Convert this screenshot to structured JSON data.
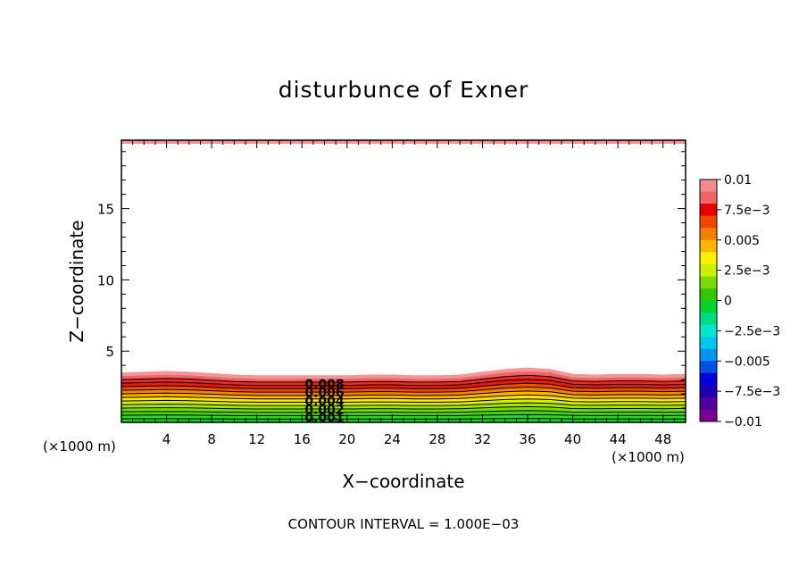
{
  "chart_data": {
    "type": "contour",
    "title": "disturbunce of Exner",
    "xlabel": "X−coordinate",
    "ylabel": "Z−coordinate",
    "x_unit_left": "(×1000 m)",
    "x_unit_right": "(×1000 m)",
    "xlim": [
      0,
      50
    ],
    "ylim": [
      0,
      19.8
    ],
    "x_ticks": [
      4,
      8,
      12,
      16,
      20,
      24,
      28,
      32,
      36,
      40,
      44,
      48
    ],
    "y_ticks": [
      5,
      10,
      15
    ],
    "contour_interval_text": "CONTOUR INTERVAL = 1.000E−03",
    "contour_levels": [
      0.001,
      0.002,
      0.003,
      0.004,
      0.005,
      0.006,
      0.007,
      0.008,
      0.009,
      0.01
    ],
    "contour_labels": [
      {
        "text": "0.008",
        "x": 18,
        "z": 2.7
      },
      {
        "text": "0.006",
        "x": 18,
        "z": 2.1
      },
      {
        "text": "0.004",
        "x": 18,
        "z": 1.5
      },
      {
        "text": "0.002",
        "x": 18,
        "z": 0.9
      },
      {
        "text": "0.001",
        "x": 18,
        "z": 0.35
      }
    ],
    "field_profile": {
      "x": [
        0,
        2,
        4,
        6,
        8,
        10,
        12,
        14,
        16,
        18,
        20,
        22,
        24,
        26,
        28,
        30,
        32,
        34,
        36,
        38,
        40,
        42,
        44,
        46,
        48,
        50
      ],
      "top_height": [
        3.5,
        3.55,
        3.6,
        3.55,
        3.45,
        3.35,
        3.3,
        3.3,
        3.3,
        3.3,
        3.3,
        3.35,
        3.35,
        3.3,
        3.3,
        3.35,
        3.55,
        3.75,
        3.85,
        3.75,
        3.4,
        3.35,
        3.4,
        3.4,
        3.35,
        3.4
      ]
    },
    "top_band_value": 0.01,
    "colorbar": {
      "ticks": [
        0.01,
        0.0075,
        0.005,
        0.0025,
        0,
        -0.0025,
        -0.005,
        -0.0075,
        -0.01
      ],
      "tick_labels": [
        "0.01",
        "7.5e−3",
        "0.005",
        "2.5e−3",
        "0",
        "−2.5e−3",
        "−0.005",
        "−7.5e−3",
        "−0.01"
      ],
      "colors": [
        "#f08c8c",
        "#f06464",
        "#e60000",
        "#f04600",
        "#f57d00",
        "#ffb400",
        "#fff000",
        "#c8f000",
        "#78dc00",
        "#32c800",
        "#00d232",
        "#00dc82",
        "#00e6c8",
        "#00c8f0",
        "#0096f0",
        "#0050e6",
        "#0000dc",
        "#1e00b4",
        "#5000a0",
        "#780096"
      ]
    },
    "field_colors": [
      "#19d219",
      "#2dd22d",
      "#46d700",
      "#78dc00",
      "#a5e600",
      "#d2f000",
      "#ffe600",
      "#ffb400",
      "#fa8200",
      "#f05000",
      "#e61e00",
      "#eb2828",
      "#f06464",
      "#f59696"
    ],
    "grid": false,
    "legend": "colorbar-right"
  }
}
